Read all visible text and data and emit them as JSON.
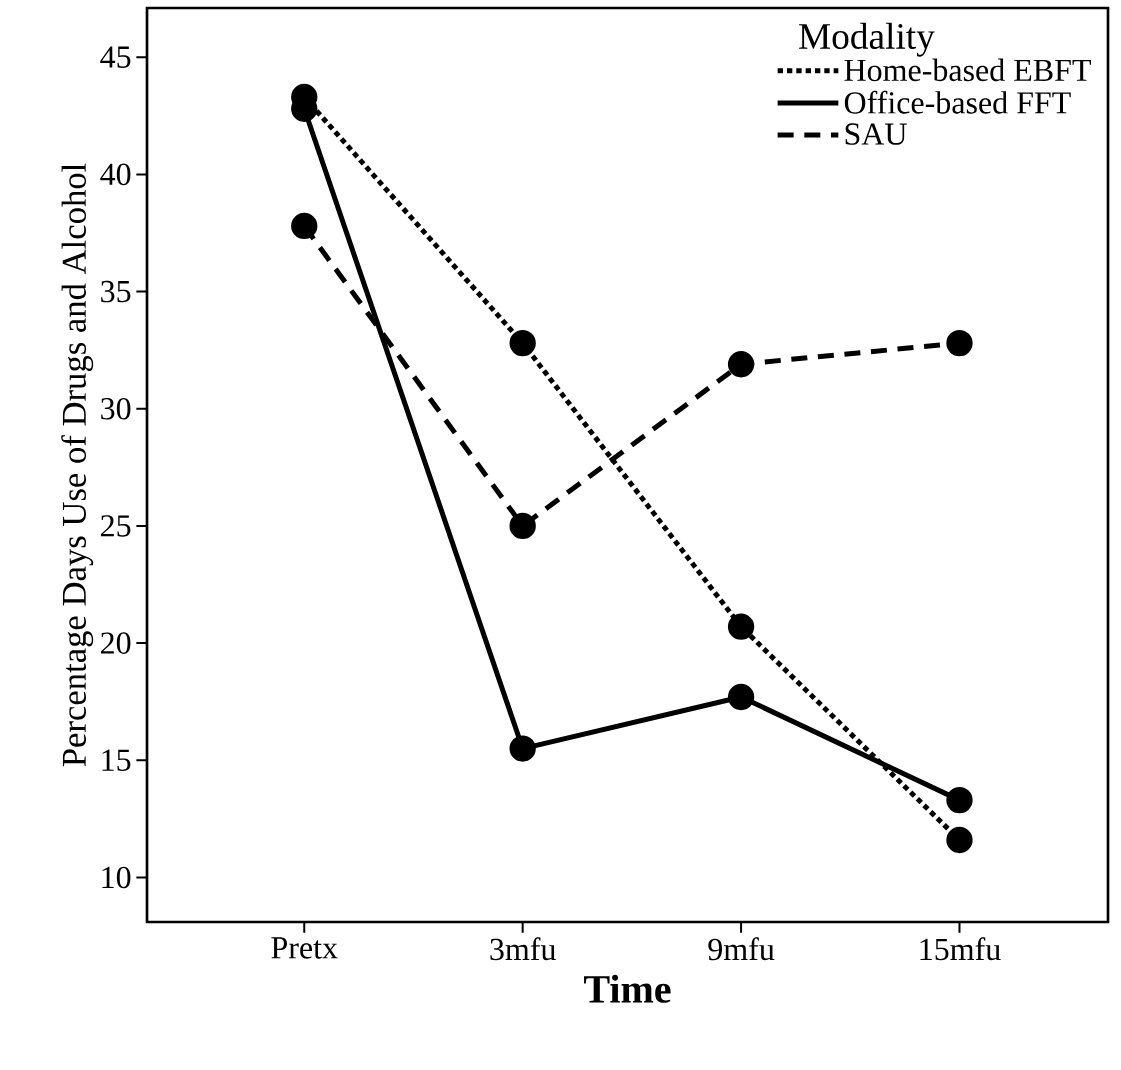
{
  "chart_data": {
    "type": "line",
    "xlabel": "Time",
    "ylabel": "Percentage Days Use of Drugs and Alcohol",
    "legend_title": "Modality",
    "categories": [
      "Pretx",
      "3mfu",
      "9mfu",
      "15mfu"
    ],
    "series": [
      {
        "name": "Home-based EBFT",
        "color": "#000000",
        "line_style": "dotted",
        "values": [
          43.3,
          32.8,
          20.7,
          11.6
        ]
      },
      {
        "name": "Office-based FFT",
        "color": "#000000",
        "line_style": "solid",
        "values": [
          42.8,
          15.5,
          17.7,
          13.3
        ]
      },
      {
        "name": "SAU",
        "color": "#000000",
        "line_style": "dashed",
        "values": [
          37.8,
          25.0,
          31.9,
          32.8
        ]
      }
    ],
    "ylim": [
      8.1,
      47.1
    ],
    "yticks": [
      10,
      15,
      20,
      25,
      30,
      35,
      40,
      45
    ],
    "grid": false,
    "legend": "top right",
    "marker": "circle"
  }
}
